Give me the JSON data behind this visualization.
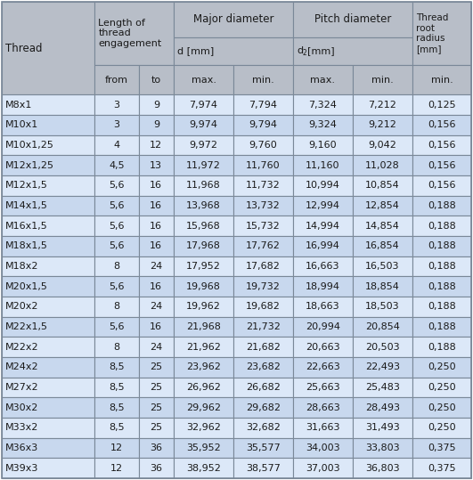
{
  "rows": [
    [
      "M8x1",
      "3",
      "9",
      "7,974",
      "7,794",
      "7,324",
      "7,212",
      "0,125"
    ],
    [
      "M10x1",
      "3",
      "9",
      "9,974",
      "9,794",
      "9,324",
      "9,212",
      "0,156"
    ],
    [
      "M10x1,25",
      "4",
      "12",
      "9,972",
      "9,760",
      "9,160",
      "9,042",
      "0,156"
    ],
    [
      "M12x1,25",
      "4,5",
      "13",
      "11,972",
      "11,760",
      "11,160",
      "11,028",
      "0,156"
    ],
    [
      "M12x1,5",
      "5,6",
      "16",
      "11,968",
      "11,732",
      "10,994",
      "10,854",
      "0,156"
    ],
    [
      "M14x1,5",
      "5,6",
      "16",
      "13,968",
      "13,732",
      "12,994",
      "12,854",
      "0,188"
    ],
    [
      "M16x1,5",
      "5,6",
      "16",
      "15,968",
      "15,732",
      "14,994",
      "14,854",
      "0,188"
    ],
    [
      "M18x1,5",
      "5,6",
      "16",
      "17,968",
      "17,762",
      "16,994",
      "16,854",
      "0,188"
    ],
    [
      "M18x2",
      "8",
      "24",
      "17,952",
      "17,682",
      "16,663",
      "16,503",
      "0,188"
    ],
    [
      "M20x1,5",
      "5,6",
      "16",
      "19,968",
      "19,732",
      "18,994",
      "18,854",
      "0,188"
    ],
    [
      "M20x2",
      "8",
      "24",
      "19,962",
      "19,682",
      "18,663",
      "18,503",
      "0,188"
    ],
    [
      "M22x1,5",
      "5,6",
      "16",
      "21,968",
      "21,732",
      "20,994",
      "20,854",
      "0,188"
    ],
    [
      "M22x2",
      "8",
      "24",
      "21,962",
      "21,682",
      "20,663",
      "20,503",
      "0,188"
    ],
    [
      "M24x2",
      "8,5",
      "25",
      "23,962",
      "23,682",
      "22,663",
      "22,493",
      "0,250"
    ],
    [
      "M27x2",
      "8,5",
      "25",
      "26,962",
      "26,682",
      "25,663",
      "25,483",
      "0,250"
    ],
    [
      "M30x2",
      "8,5",
      "25",
      "29,962",
      "29,682",
      "28,663",
      "28,493",
      "0,250"
    ],
    [
      "M33x2",
      "8,5",
      "25",
      "32,962",
      "32,682",
      "31,663",
      "31,493",
      "0,250"
    ],
    [
      "M36x3",
      "12",
      "36",
      "35,952",
      "35,577",
      "34,003",
      "33,803",
      "0,375"
    ],
    [
      "M39x3",
      "12",
      "36",
      "38,952",
      "38,577",
      "37,003",
      "36,803",
      "0,375"
    ]
  ],
  "header_bg": "#b8bec8",
  "row_bg_light": "#dce8f8",
  "row_bg_dark": "#c8d8ee",
  "border_color": "#7a8898",
  "text_color": "#1a1a1a",
  "fig_width": 5.31,
  "fig_height": 5.39,
  "dpi": 100
}
